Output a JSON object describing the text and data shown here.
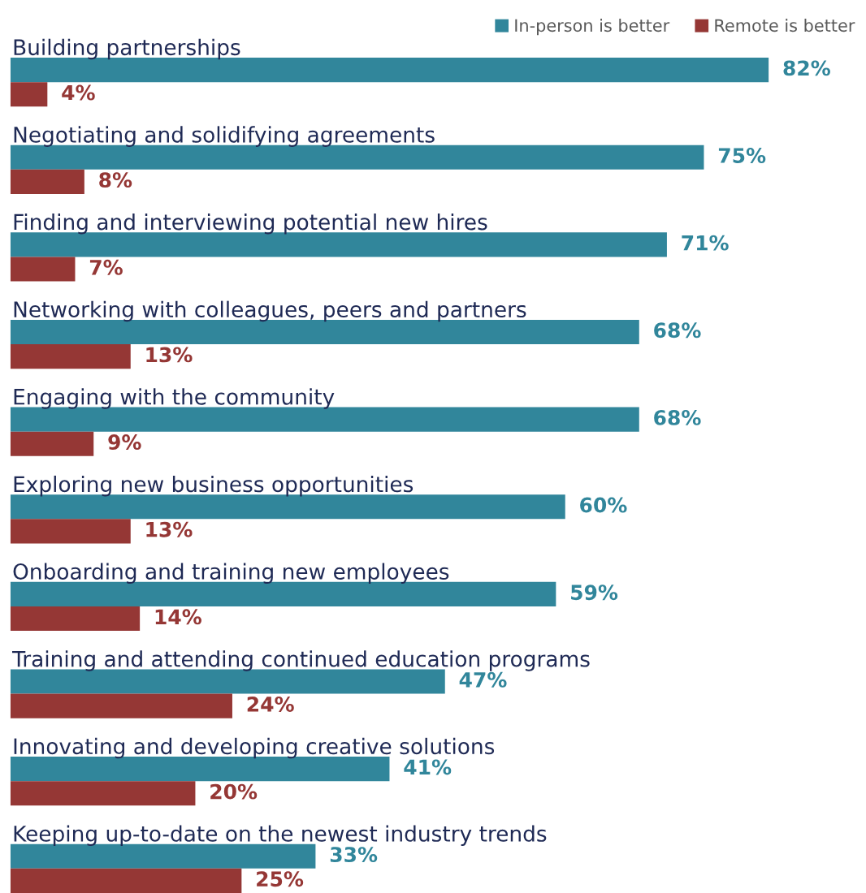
{
  "chart_data": {
    "type": "bar",
    "orientation": "horizontal",
    "legend": "top right",
    "categories": [
      "Building partnerships",
      "Negotiating and solidifying agreements",
      "Finding and interviewing potential new hires",
      "Networking with colleagues, peers and partners",
      "Engaging with the community",
      "Exploring new business opportunities",
      "Onboarding and training new employees",
      "Training and attending continued education programs",
      "Innovating and developing creative solutions",
      "Keeping up-to-date on the newest industry trends"
    ],
    "series": [
      {
        "name": "In-person is better",
        "color": "#31869b",
        "values": [
          82,
          75,
          71,
          68,
          68,
          60,
          59,
          47,
          41,
          33
        ],
        "value_labels": [
          "82%",
          "75%",
          "71%",
          "68%",
          "68%",
          "60%",
          "59%",
          "47%",
          "41%",
          "33%"
        ]
      },
      {
        "name": "Remote is better",
        "color": "#953735",
        "values": [
          4,
          8,
          7,
          13,
          9,
          13,
          14,
          24,
          20,
          25
        ],
        "value_labels": [
          "4%",
          "8%",
          "7%",
          "13%",
          "9%",
          "13%",
          "14%",
          "24%",
          "20%",
          "25%"
        ]
      }
    ]
  }
}
